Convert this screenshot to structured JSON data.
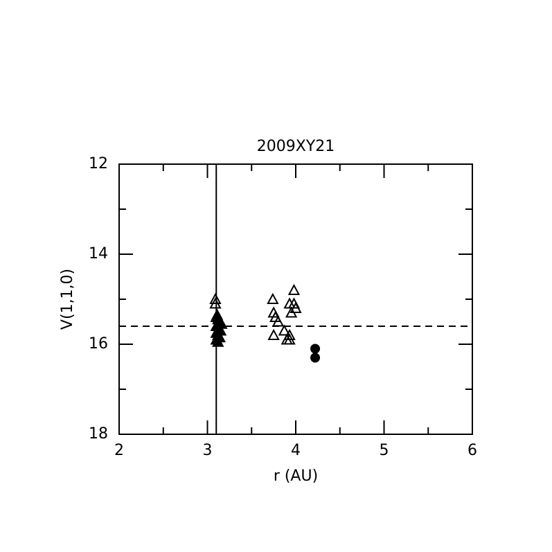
{
  "chart_data": {
    "type": "scatter",
    "title": "2009XY21",
    "xlabel": "r (AU)",
    "ylabel": "V(1,1,0)",
    "xlim": [
      2,
      6
    ],
    "ylim": [
      18,
      12
    ],
    "xticks": [
      2,
      3,
      4,
      5,
      6
    ],
    "yticks": [
      12,
      14,
      16,
      18
    ],
    "xticks_minor": [
      2.5,
      3.5,
      4.5,
      5.5
    ],
    "yticks_minor": [
      13,
      15,
      17
    ],
    "vlines": [
      3.1
    ],
    "hlines": [
      15.6
    ],
    "series": [
      {
        "marker": "triangle",
        "filled": true,
        "color": "#000000",
        "x": [
          3.11,
          3.1,
          3.12,
          3.14,
          3.16,
          3.1,
          3.13,
          3.15,
          3.1,
          3.12,
          3.14,
          3.1,
          3.12
        ],
        "y": [
          15.35,
          15.4,
          15.45,
          15.5,
          15.55,
          15.6,
          15.65,
          15.7,
          15.75,
          15.8,
          15.85,
          15.9,
          15.95
        ]
      },
      {
        "marker": "triangle",
        "filled": false,
        "color": "#000000",
        "x": [
          3.09,
          3.09,
          3.74,
          3.75,
          3.77,
          3.8,
          3.75,
          3.87,
          3.9,
          3.93,
          3.93,
          3.93,
          3.95,
          3.98,
          3.98,
          4.0
        ],
        "y": [
          15.0,
          15.1,
          15.0,
          15.3,
          15.4,
          15.5,
          15.8,
          15.7,
          15.9,
          15.8,
          15.9,
          15.1,
          15.3,
          15.1,
          14.8,
          15.2
        ]
      },
      {
        "marker": "circle",
        "filled": true,
        "color": "#000000",
        "x": [
          4.22,
          4.22
        ],
        "y": [
          16.1,
          16.3
        ]
      }
    ]
  }
}
